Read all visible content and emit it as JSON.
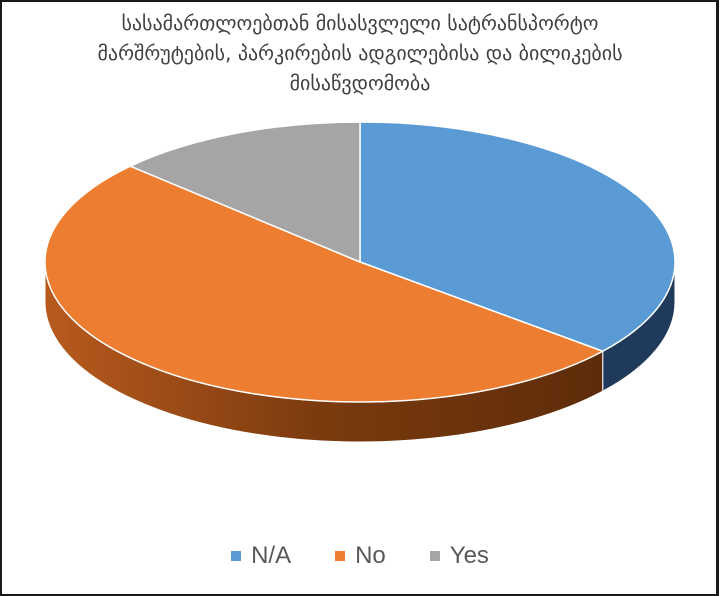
{
  "chart_data": {
    "type": "pie",
    "style": "3d",
    "title_lines": [
      "სასამართლოებთან მისასვლელი სატრანსპორტო",
      "მარშრუტების, პარკირების ადგილებისა და ბილიკების",
      "მისაწვდომობა"
    ],
    "categories": [
      "N/A",
      "No",
      "Yes"
    ],
    "values": [
      36,
      51,
      13
    ],
    "colors": [
      "#5b9bd5",
      "#ed7d31",
      "#a5a5a5"
    ],
    "side_colors": [
      "#1f3a5a",
      "#8a4010",
      "#6b6b6b"
    ],
    "legend_position": "bottom"
  }
}
